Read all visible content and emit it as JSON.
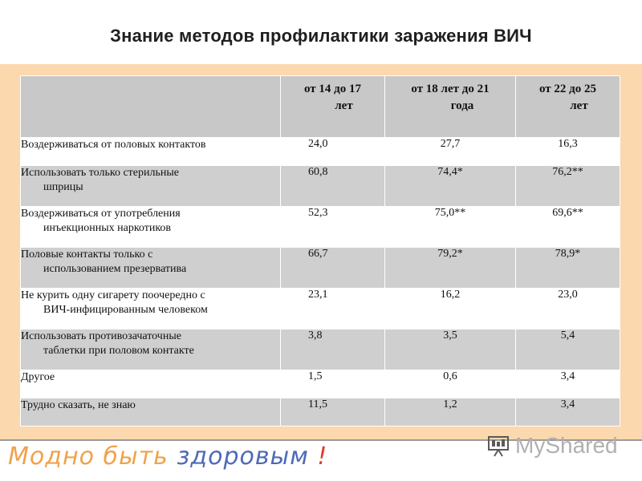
{
  "title": "Знание методов профилактики заражения ВИЧ",
  "table": {
    "headers": [
      "",
      "от 14 до 17 лет",
      "от 18 лет до 21 года",
      "от 22 до 25 лет"
    ],
    "header_lines": [
      [
        "от 14 до 17",
        "лет"
      ],
      [
        "от 18 лет до 21",
        "года"
      ],
      [
        "от 22 до 25",
        "лет"
      ]
    ],
    "rows": [
      {
        "label_first": "Воздерживаться от половых контактов",
        "label_rest": "",
        "v1": "24,0",
        "v2": "27,7",
        "v3": "16,3"
      },
      {
        "label_first": "Использовать только стерильные",
        "label_rest": "шприцы",
        "v1": "60,8",
        "v2": "74,4*",
        "v3": "76,2**"
      },
      {
        "label_first": "Воздерживаться от употребления",
        "label_rest": "инъекционных наркотиков",
        "v1": "52,3",
        "v2": "75,0**",
        "v3": "69,6**"
      },
      {
        "label_first": "Половые контакты только с",
        "label_rest": "использованием презерватива",
        "v1": "66,7",
        "v2": "79,2*",
        "v3": "78,9*"
      },
      {
        "label_first": "Не курить одну сигарету поочередно с",
        "label_rest": "ВИЧ-инфицированным человеком",
        "v1": "23,1",
        "v2": "16,2",
        "v3": "23,0"
      },
      {
        "label_first": "Использовать противозачаточные",
        "label_rest": "таблетки при половом контакте",
        "v1": "3,8",
        "v2": "3,5",
        "v3": "5,4"
      },
      {
        "label_first": "Другое",
        "label_rest": "",
        "v1": "1,5",
        "v2": "0,6",
        "v3": "3,4"
      },
      {
        "label_first": "Трудно сказать, не знаю",
        "label_rest": "",
        "v1": "11,5",
        "v2": "1,2",
        "v3": "3,4"
      }
    ]
  },
  "footer": {
    "slogan_part1": "Модно быть",
    "slogan_part2": "здоровым",
    "slogan_part3": "!",
    "logo_text": "MyShared"
  },
  "colors": {
    "background": "#fbd8ad",
    "header_fill": "#c8c8c8",
    "stripe_fill": "#cfcfcf"
  }
}
